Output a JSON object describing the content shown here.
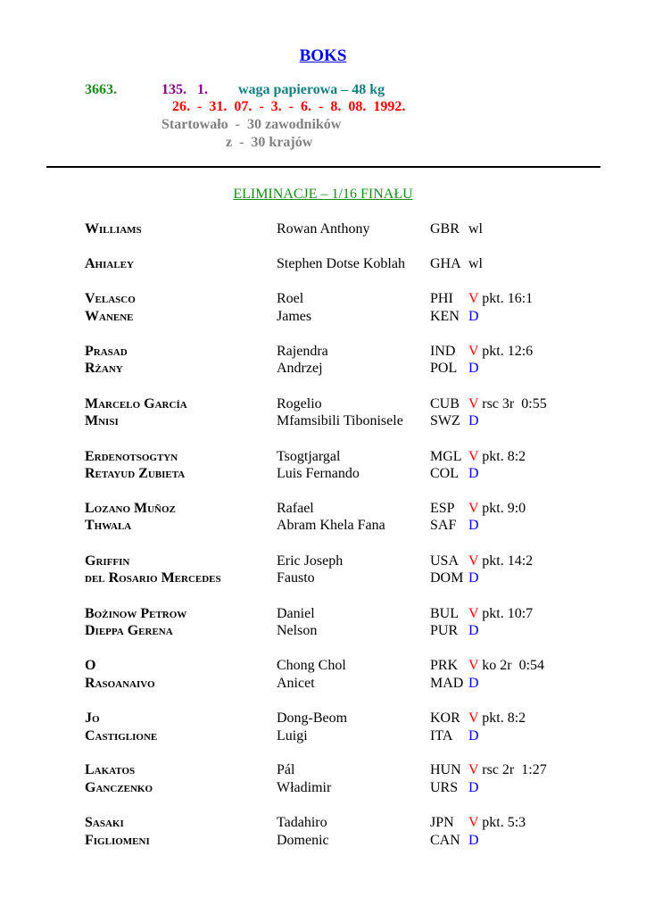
{
  "header": {
    "title": "BOKS",
    "number": "3663.",
    "category": "135.   1.",
    "weight": "waga papierowa – 48 kg",
    "dates": "26.  -  31.  07.  -  3.  -  6.  -  8.  08.  1992.",
    "started": "Startowało  -  30 zawodników",
    "countries": "z  -  30 krajów"
  },
  "round": "ELIMINACJE – 1/16 FINAŁU",
  "colors": {
    "title": "#0000ee",
    "number": "#1a8a1a",
    "category": "#800080",
    "weight": "#138080",
    "dates": "#ff0000",
    "info": "#808080",
    "win": "#ff0000",
    "loss": "#0000ff"
  },
  "rows": [
    {
      "surname": "Williams",
      "first": "Rowan Anthony",
      "country": "GBR",
      "mark": "",
      "result": "wl"
    },
    {
      "surname": "Ahialey",
      "first": "Stephen Dotse Koblah",
      "country": "GHA",
      "mark": "",
      "result": "wl"
    },
    {
      "surname": "Velasco",
      "first": "Roel",
      "country": "PHI",
      "mark": "V",
      "result": "pkt. 16:1"
    },
    {
      "surname": "Wanene",
      "first": "James",
      "country": "KEN",
      "mark": "D",
      "result": ""
    },
    {
      "surname": "Prasad",
      "first": "Rajendra",
      "country": "IND",
      "mark": "V",
      "result": "pkt. 12:6"
    },
    {
      "surname": "Rżany",
      "first": "Andrzej",
      "country": "POL",
      "mark": "D",
      "result": ""
    },
    {
      "surname": "Marcelo García",
      "first": "Rogelio",
      "country": "CUB",
      "mark": "V",
      "result": "rsc 3r  0:55"
    },
    {
      "surname": "Mnisi",
      "first": "Mfamsibili Tibonisele",
      "country": "SWZ",
      "mark": "D",
      "result": ""
    },
    {
      "surname": "Erdenotsogtyn",
      "first": "Tsogtjargal",
      "country": "MGL",
      "mark": "V",
      "result": "pkt. 8:2"
    },
    {
      "surname": "Retayud Zubieta",
      "first": "Luis Fernando",
      "country": "COL",
      "mark": "D",
      "result": ""
    },
    {
      "surname": "Lozano Muñoz",
      "first": "Rafael",
      "country": "ESP",
      "mark": "V",
      "result": "pkt. 9:0"
    },
    {
      "surname": "Thwala",
      "first": "Abram Khela Fana",
      "country": "SAF",
      "mark": "D",
      "result": ""
    },
    {
      "surname": "Griffin",
      "first": "Eric Joseph",
      "country": "USA",
      "mark": "V",
      "result": "pkt. 14:2"
    },
    {
      "surname": "del Rosario Mercedes",
      "first": "Fausto",
      "country": "DOM",
      "mark": "D",
      "result": ""
    },
    {
      "surname": "Bożinow Petrow",
      "first": "Daniel",
      "country": "BUL",
      "mark": "V",
      "result": "pkt. 10:7"
    },
    {
      "surname": "Dieppa Gerena",
      "first": "Nelson",
      "country": "PUR",
      "mark": "D",
      "result": ""
    },
    {
      "surname": "O",
      "first": "Chong Chol",
      "country": "PRK",
      "mark": "V",
      "result": "ko 2r  0:54"
    },
    {
      "surname": "Rasoanaivo",
      "first": "Anicet",
      "country": "MAD",
      "mark": "D",
      "result": ""
    },
    {
      "surname": "Jo",
      "first": "Dong-Beom",
      "country": "KOR",
      "mark": "V",
      "result": "pkt. 8:2"
    },
    {
      "surname": "Castiglione",
      "first": "Luigi",
      "country": "ITA",
      "mark": "D",
      "result": ""
    },
    {
      "surname": "Lakatos",
      "first": "Pál",
      "country": "HUN",
      "mark": "V",
      "result": "rsc 2r  1:27"
    },
    {
      "surname": "Ganczenko",
      "first": "Władimir",
      "country": "URS",
      "mark": "D",
      "result": ""
    },
    {
      "surname": "Sasaki",
      "first": "Tadahiro",
      "country": "JPN",
      "mark": "V",
      "result": "pkt. 5:3"
    },
    {
      "surname": "Figliomeni",
      "first": "Domenic",
      "country": "CAN",
      "mark": "D",
      "result": ""
    }
  ]
}
